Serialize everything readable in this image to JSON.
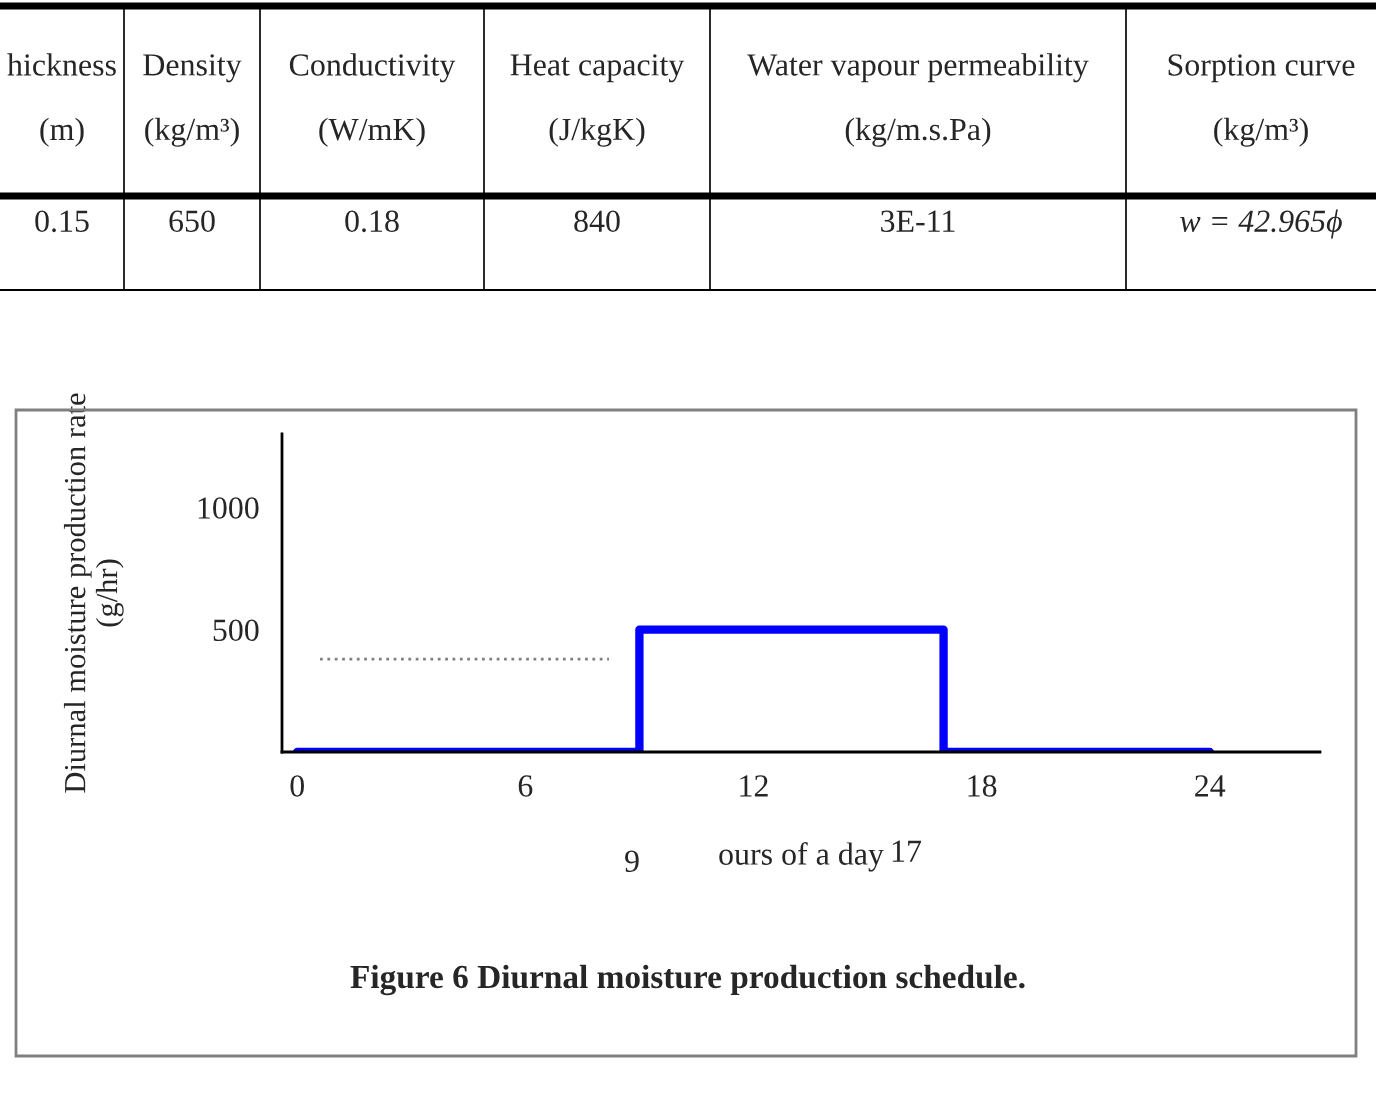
{
  "chart_data": [
    {
      "type": "other",
      "annotations": [
        "hickness\n(m)",
        "Density\n(kg/m³)",
        "Conductivity\n(W/mK)",
        "Heat capacity\n(J/kgK)",
        "Water vapour permeability\n(kg/m.s.Pa)",
        "Sorption curve\n(kg/m³)",
        "0.15",
        "650",
        "0.18",
        "840",
        "3E-11",
        "w = 42.965ϕ"
      ]
    },
    {
      "type": "step",
      "ylabel": "Diurnal moisture production rate\n(g/hr)",
      "xlabel": "ours of a day",
      "xlim": [
        -0.4,
        26.9
      ],
      "xticks": [
        0,
        6,
        12,
        18,
        24
      ],
      "ylim": [
        0,
        1300
      ],
      "yticks": [
        500,
        1000
      ],
      "grid": false,
      "series": [
        {
          "type": "step",
          "color": "#0000ff",
          "x": [
            0,
            9,
            17,
            24
          ],
          "values": [
            0,
            500,
            0,
            0
          ]
        },
        {
          "type": "line",
          "color": "#808080",
          "line_style": "dotted",
          "x": [
            0.6,
            8.2
          ],
          "values": [
            380,
            380
          ]
        }
      ],
      "annotations": [
        "9",
        "17",
        "Figure 6 Diurnal moisture production schedule."
      ]
    }
  ]
}
